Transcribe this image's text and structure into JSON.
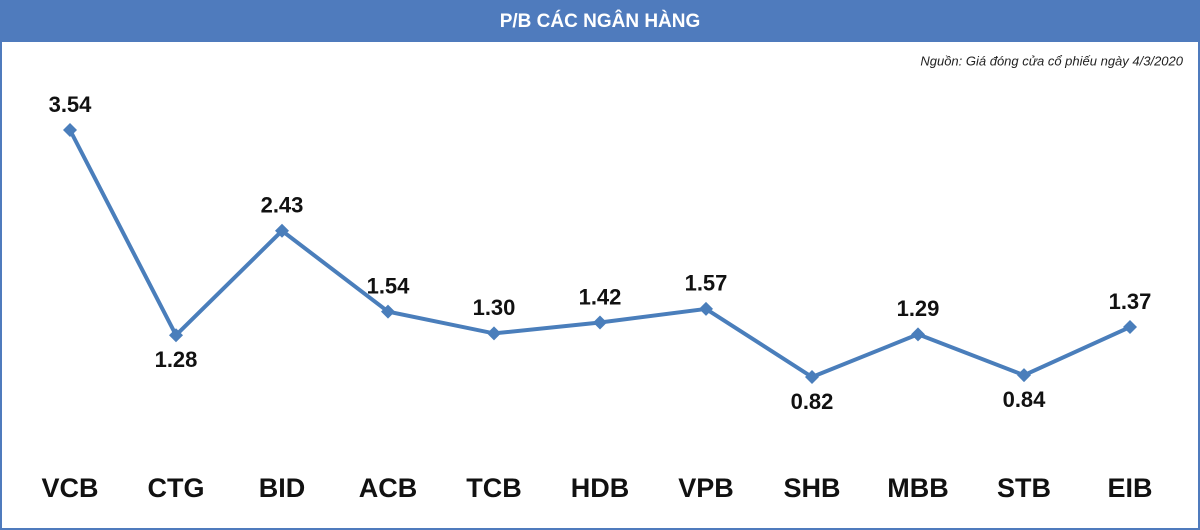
{
  "chart_data": {
    "type": "line",
    "title": "P/B CÁC NGÂN HÀNG",
    "subtitle": "Nguồn: Giá đóng cửa cổ phiếu ngày 4/3/2020",
    "categories": [
      "VCB",
      "CTG",
      "BID",
      "ACB",
      "TCB",
      "HDB",
      "VPB",
      "SHB",
      "MBB",
      "STB",
      "EIB"
    ],
    "values": [
      3.54,
      1.28,
      2.43,
      1.54,
      1.3,
      1.42,
      1.57,
      0.82,
      1.29,
      0.84,
      1.37
    ],
    "value_labels": [
      "3.54",
      "1.28",
      "2.43",
      "1.54",
      "1.30",
      "1.42",
      "1.57",
      "0.82",
      "1.29",
      "0.84",
      "1.37"
    ],
    "color": "#4a7ebb"
  }
}
